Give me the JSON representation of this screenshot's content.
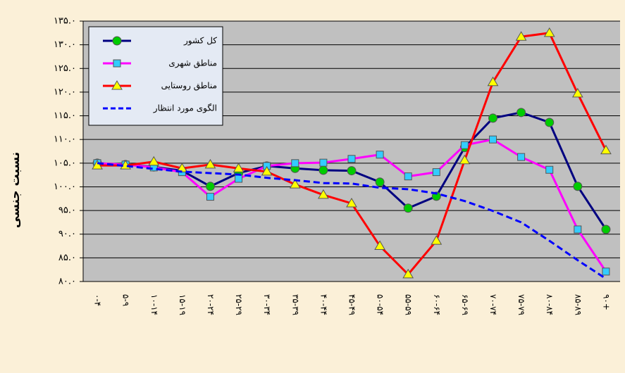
{
  "chart_data": {
    "type": "line",
    "y_label": "نسبت جنسی",
    "categories": [
      "۰-۴",
      "۵-۹",
      "۱۰-۱۴",
      "۱۵-۱۹",
      "۲۰-۲۴",
      "۲۵-۲۹",
      "۳۰-۳۴",
      "۳۵-۳۹",
      "۴۰-۴۴",
      "۴۵-۴۹",
      "۵۰-۵۴",
      "۵۵-۵۹",
      "۶۰-۶۴",
      "۶۵-۶۹",
      "۷۰-۷۴",
      "۷۵-۷۹",
      "۸۰-۸۴",
      "۸۵-۸۹",
      "۹۰+"
    ],
    "series": [
      {
        "name": "کل کشور",
        "color": "#000080",
        "marker": "circle",
        "marker_color": "#00cc00",
        "dashed": false,
        "values": [
          105.0,
          104.7,
          104.2,
          103.4,
          100.1,
          102.9,
          104.4,
          103.9,
          103.5,
          103.4,
          101.0,
          95.5,
          98.0,
          108.3,
          114.5,
          115.7,
          113.6,
          100.1,
          91.0
        ]
      },
      {
        "name": "مناطق شهری",
        "color": "#ff00ff",
        "marker": "square",
        "marker_color": "#33ccff",
        "dashed": false,
        "values": [
          105.0,
          104.7,
          104.1,
          103.1,
          97.9,
          101.7,
          104.4,
          105.0,
          105.1,
          105.9,
          106.8,
          102.2,
          103.1,
          108.8,
          110.0,
          106.3,
          103.6,
          91.0,
          82.1
        ]
      },
      {
        "name": "مناطق روستایی",
        "color": "#ff0000",
        "marker": "triangle",
        "marker_color": "#ffff00",
        "dashed": false,
        "values": [
          104.5,
          104.5,
          105.3,
          103.9,
          104.7,
          103.9,
          103.2,
          100.5,
          98.3,
          96.5,
          87.5,
          81.5,
          88.6,
          105.6,
          122.1,
          131.7,
          132.5,
          119.7,
          107.7
        ]
      },
      {
        "name": "الگوی مورد انتظار",
        "color": "#0000ff",
        "marker": "none",
        "marker_color": "#0000ff",
        "dashed": true,
        "values": [
          105.0,
          104.4,
          103.8,
          103.2,
          102.9,
          102.6,
          101.9,
          101.4,
          100.8,
          100.7,
          99.8,
          99.5,
          98.6,
          97.0,
          94.9,
          92.5,
          88.6,
          84.5,
          80.6
        ]
      }
    ],
    "ylim": [
      80,
      135
    ],
    "yticks": [
      {
        "value": 80,
        "label": "۸۰.۰"
      },
      {
        "value": 85,
        "label": "۸۵.۰"
      },
      {
        "value": 90,
        "label": "۹۰.۰"
      },
      {
        "value": 95,
        "label": "۹۵.۰"
      },
      {
        "value": 100,
        "label": "۱۰۰.۰"
      },
      {
        "value": 105,
        "label": "۱۰۵.۰"
      },
      {
        "value": 110,
        "label": "۱۱۰.۰"
      },
      {
        "value": 115,
        "label": "۱۱۵.۰"
      },
      {
        "value": 120,
        "label": "۱۲۰.۰"
      },
      {
        "value": 125,
        "label": "۱۲۵.۰"
      },
      {
        "value": 130,
        "label": "۱۳۰.۰"
      },
      {
        "value": 135,
        "label": "۱۳۵.۰"
      }
    ],
    "grid": true,
    "legend": "top-left",
    "plot_background": "#c0c0c0"
  }
}
